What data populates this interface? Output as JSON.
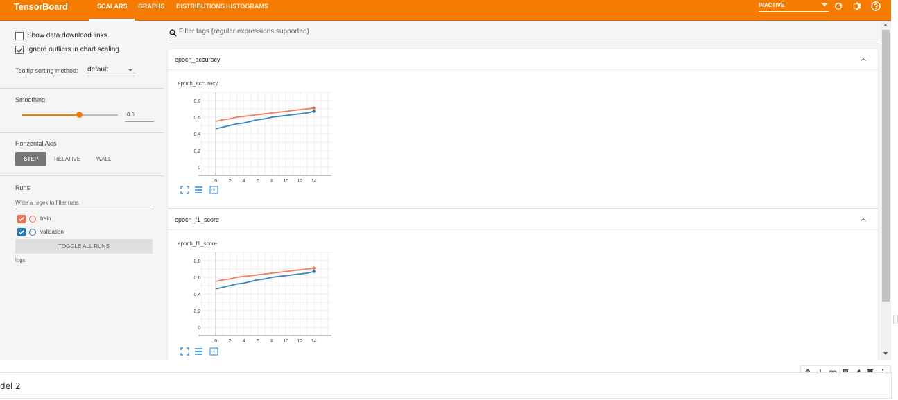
{
  "app_title": "TensorBoard",
  "nav_tabs": [
    "SCALARS",
    "GRAPHS",
    "DISTRIBUTIONS",
    "HISTOGRAMS"
  ],
  "inactive_label": "INACTIVE",
  "icons": {
    "reload": "refresh-icon",
    "settings": "gear-icon",
    "help": "help-circle-icon"
  },
  "sidebar": {
    "show_download_links": "Show data download links",
    "ignore_outliers": "Ignore outliers in chart scaling",
    "tooltip_sorting_label": "Tooltip sorting method:",
    "tooltip_sorting_value": "default",
    "smoothing_label": "Smoothing",
    "smoothing_value": "0.6",
    "smoothing_fraction": 0.6,
    "horizontal_axis_label": "Horizontal Axis",
    "axis_options": [
      "STEP",
      "RELATIVE",
      "WALL"
    ],
    "runs_label": "Runs",
    "run_filter_placeholder": "Write a regex to filter runs",
    "runs": [
      {
        "name": "train",
        "color": "#f0704e"
      },
      {
        "name": "validation",
        "color": "#1f77b4"
      }
    ],
    "toggle_all": "TOGGLE ALL RUNS",
    "logdir": "logs"
  },
  "main": {
    "filter_placeholder": "Filter tags (regular expressions supported)"
  },
  "cards": [
    {
      "tag": "epoch_accuracy",
      "chart_title": "epoch_accuracy"
    },
    {
      "tag": "epoch_f1_score",
      "chart_title": "epoch_f1_score"
    }
  ],
  "chart_data": [
    {
      "type": "line",
      "title": "epoch_accuracy",
      "xlabel": "",
      "ylabel": "",
      "x_ticks": [
        "0",
        "2",
        "4",
        "6",
        "8",
        "10",
        "12",
        "14"
      ],
      "y_ticks": [
        "0",
        "0.2",
        "0.4",
        "0.6",
        "0.8"
      ],
      "xlim": [
        -2.5,
        16.5
      ],
      "ylim": [
        -0.1,
        0.9
      ],
      "grid": true,
      "series": [
        {
          "name": "train",
          "color": "#f0704e",
          "x": [
            0,
            1,
            2,
            3,
            4,
            5,
            6,
            7,
            8,
            9,
            10,
            11,
            12,
            13,
            14
          ],
          "y": [
            0.55,
            0.57,
            0.58,
            0.6,
            0.61,
            0.62,
            0.63,
            0.64,
            0.65,
            0.66,
            0.67,
            0.68,
            0.69,
            0.7,
            0.71
          ]
        },
        {
          "name": "validation",
          "color": "#1f77b4",
          "x": [
            0,
            1,
            2,
            3,
            4,
            5,
            6,
            7,
            8,
            9,
            10,
            11,
            12,
            13,
            14
          ],
          "y": [
            0.46,
            0.48,
            0.5,
            0.52,
            0.53,
            0.55,
            0.57,
            0.58,
            0.6,
            0.61,
            0.62,
            0.63,
            0.64,
            0.65,
            0.67
          ]
        }
      ]
    },
    {
      "type": "line",
      "title": "epoch_f1_score",
      "xlabel": "",
      "ylabel": "",
      "x_ticks": [
        "0",
        "2",
        "4",
        "6",
        "8",
        "10",
        "12",
        "14"
      ],
      "y_ticks": [
        "0",
        "0.2",
        "0.4",
        "0.6",
        "0.8"
      ],
      "xlim": [
        -2.5,
        16.5
      ],
      "ylim": [
        -0.1,
        0.9
      ],
      "grid": true,
      "series": [
        {
          "name": "train",
          "color": "#f0704e",
          "x": [
            0,
            1,
            2,
            3,
            4,
            5,
            6,
            7,
            8,
            9,
            10,
            11,
            12,
            13,
            14
          ],
          "y": [
            0.55,
            0.57,
            0.58,
            0.6,
            0.61,
            0.62,
            0.63,
            0.64,
            0.65,
            0.66,
            0.67,
            0.68,
            0.69,
            0.7,
            0.71
          ]
        },
        {
          "name": "validation",
          "color": "#1f77b4",
          "x": [
            0,
            1,
            2,
            3,
            4,
            5,
            6,
            7,
            8,
            9,
            10,
            11,
            12,
            13,
            14
          ],
          "y": [
            0.46,
            0.48,
            0.5,
            0.52,
            0.53,
            0.55,
            0.57,
            0.58,
            0.6,
            0.61,
            0.62,
            0.63,
            0.64,
            0.65,
            0.67
          ]
        }
      ]
    }
  ],
  "notebook_cell_text": "del 2",
  "cell_toolbar_icons": [
    "arrow-up-icon",
    "arrow-down-icon",
    "link-icon",
    "comment-icon",
    "edit-icon",
    "delete-icon",
    "more-icon"
  ]
}
